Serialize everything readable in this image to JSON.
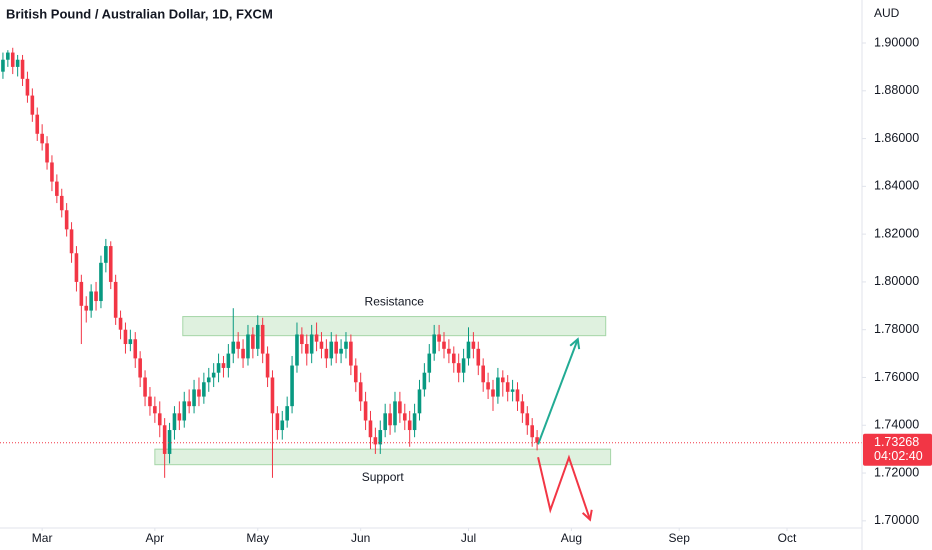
{
  "chart_data": {
    "type": "candlestick",
    "title": "British Pound / Australian Dollar, 1D, FXCM",
    "y_axis_label": "AUD",
    "up_color": "#089981",
    "down_color": "#f23645",
    "grid": false,
    "ylim": [
      1.697,
      1.918
    ],
    "yticks": [
      {
        "value": 1.7,
        "label": "1.70000"
      },
      {
        "value": 1.72,
        "label": "1.72000"
      },
      {
        "value": 1.74,
        "label": "1.74000"
      },
      {
        "value": 1.76,
        "label": "1.76000"
      },
      {
        "value": 1.78,
        "label": "1.78000"
      },
      {
        "value": 1.8,
        "label": "1.80000"
      },
      {
        "value": 1.82,
        "label": "1.82000"
      },
      {
        "value": 1.84,
        "label": "1.84000"
      },
      {
        "value": 1.86,
        "label": "1.86000"
      },
      {
        "value": 1.88,
        "label": "1.88000"
      },
      {
        "value": 1.9,
        "label": "1.90000"
      }
    ],
    "xlim": [
      -0.6,
      175.3
    ],
    "xticks": [
      {
        "value": 8,
        "label": "Mar"
      },
      {
        "value": 31,
        "label": "Apr"
      },
      {
        "value": 52,
        "label": "May"
      },
      {
        "value": 73,
        "label": "Jun"
      },
      {
        "value": 95,
        "label": "Jul"
      },
      {
        "value": 116,
        "label": "Aug"
      },
      {
        "value": 138,
        "label": "Sep"
      },
      {
        "value": 160,
        "label": "Oct"
      }
    ],
    "open": [
      1.888,
      1.893,
      1.896,
      1.89,
      1.893,
      1.885,
      1.878,
      1.87,
      1.862,
      1.858,
      1.85,
      1.842,
      1.836,
      1.83,
      1.822,
      1.812,
      1.8,
      1.79,
      1.788,
      1.796,
      1.792,
      1.808,
      1.815,
      1.8,
      1.785,
      1.78,
      1.774,
      1.776,
      1.768,
      1.76,
      1.752,
      1.748,
      1.745,
      1.74,
      1.728,
      1.738,
      1.745,
      1.742,
      1.75,
      1.748,
      1.755,
      1.752,
      1.758,
      1.76,
      1.762,
      1.766,
      1.764,
      1.77,
      1.775,
      1.772,
      1.768,
      1.778,
      1.772,
      1.782,
      1.77,
      1.76,
      1.745,
      1.738,
      1.742,
      1.748,
      1.765,
      1.778,
      1.774,
      1.77,
      1.778,
      1.775,
      1.772,
      1.768,
      1.775,
      1.77,
      1.772,
      1.775,
      1.765,
      1.758,
      1.75,
      1.742,
      1.735,
      1.732,
      1.738,
      1.745,
      1.74,
      1.75,
      1.745,
      1.742,
      1.738,
      1.745,
      1.755,
      1.762,
      1.77,
      1.778,
      1.775,
      1.772,
      1.77,
      1.766,
      1.762,
      1.768,
      1.775,
      1.772,
      1.765,
      1.758,
      1.755,
      1.752,
      1.76,
      1.758,
      1.754,
      1.755,
      1.75,
      1.745,
      1.74,
      1.735
    ],
    "high": [
      1.896,
      1.897,
      1.898,
      1.895,
      1.895,
      1.888,
      1.881,
      1.873,
      1.866,
      1.861,
      1.853,
      1.845,
      1.839,
      1.833,
      1.825,
      1.815,
      1.803,
      1.794,
      1.799,
      1.8,
      1.811,
      1.818,
      1.817,
      1.803,
      1.788,
      1.783,
      1.78,
      1.779,
      1.771,
      1.763,
      1.756,
      1.752,
      1.75,
      1.743,
      1.741,
      1.748,
      1.75,
      1.754,
      1.755,
      1.759,
      1.76,
      1.762,
      1.764,
      1.766,
      1.77,
      1.769,
      1.774,
      1.789,
      1.779,
      1.776,
      1.782,
      1.781,
      1.786,
      1.785,
      1.773,
      1.763,
      1.748,
      1.746,
      1.752,
      1.769,
      1.783,
      1.781,
      1.778,
      1.782,
      1.783,
      1.779,
      1.776,
      1.779,
      1.778,
      1.776,
      1.779,
      1.778,
      1.768,
      1.762,
      1.754,
      1.746,
      1.739,
      1.742,
      1.749,
      1.749,
      1.754,
      1.754,
      1.749,
      1.746,
      1.749,
      1.759,
      1.766,
      1.774,
      1.782,
      1.782,
      1.779,
      1.776,
      1.773,
      1.77,
      1.772,
      1.781,
      1.779,
      1.775,
      1.768,
      1.762,
      1.759,
      1.764,
      1.763,
      1.761,
      1.759,
      1.758,
      1.753,
      1.748,
      1.743,
      1.738
    ],
    "low": [
      1.885,
      1.89,
      1.887,
      1.886,
      1.882,
      1.875,
      1.867,
      1.859,
      1.855,
      1.847,
      1.838,
      1.833,
      1.827,
      1.819,
      1.808,
      1.796,
      1.774,
      1.783,
      1.785,
      1.788,
      1.789,
      1.804,
      1.797,
      1.782,
      1.776,
      1.77,
      1.771,
      1.764,
      1.756,
      1.748,
      1.744,
      1.741,
      1.735,
      1.718,
      1.724,
      1.734,
      1.738,
      1.739,
      1.745,
      1.745,
      1.748,
      1.749,
      1.754,
      1.756,
      1.758,
      1.76,
      1.76,
      1.766,
      1.768,
      1.764,
      1.765,
      1.768,
      1.769,
      1.766,
      1.756,
      1.718,
      1.734,
      1.734,
      1.739,
      1.745,
      1.762,
      1.77,
      1.765,
      1.766,
      1.771,
      1.768,
      1.764,
      1.765,
      1.766,
      1.766,
      1.768,
      1.761,
      1.754,
      1.746,
      1.738,
      1.73,
      1.728,
      1.728,
      1.735,
      1.736,
      1.737,
      1.741,
      1.738,
      1.731,
      1.735,
      1.742,
      1.752,
      1.758,
      1.767,
      1.771,
      1.768,
      1.766,
      1.762,
      1.758,
      1.758,
      1.765,
      1.768,
      1.761,
      1.754,
      1.751,
      1.746,
      1.749,
      1.752,
      1.75,
      1.75,
      1.746,
      1.741,
      1.736,
      1.731,
      1.7295
    ],
    "close": [
      1.893,
      1.896,
      1.89,
      1.893,
      1.885,
      1.878,
      1.87,
      1.862,
      1.858,
      1.85,
      1.842,
      1.836,
      1.83,
      1.822,
      1.812,
      1.8,
      1.79,
      1.788,
      1.796,
      1.792,
      1.808,
      1.815,
      1.8,
      1.785,
      1.78,
      1.774,
      1.776,
      1.768,
      1.76,
      1.752,
      1.748,
      1.745,
      1.74,
      1.728,
      1.738,
      1.745,
      1.742,
      1.75,
      1.748,
      1.755,
      1.752,
      1.758,
      1.76,
      1.762,
      1.766,
      1.764,
      1.77,
      1.775,
      1.772,
      1.768,
      1.778,
      1.772,
      1.782,
      1.77,
      1.76,
      1.745,
      1.738,
      1.742,
      1.748,
      1.765,
      1.778,
      1.774,
      1.77,
      1.778,
      1.775,
      1.772,
      1.768,
      1.775,
      1.77,
      1.772,
      1.775,
      1.765,
      1.758,
      1.75,
      1.742,
      1.735,
      1.732,
      1.738,
      1.745,
      1.74,
      1.75,
      1.745,
      1.742,
      1.738,
      1.745,
      1.755,
      1.762,
      1.77,
      1.778,
      1.775,
      1.772,
      1.77,
      1.766,
      1.762,
      1.768,
      1.775,
      1.772,
      1.765,
      1.758,
      1.755,
      1.752,
      1.76,
      1.758,
      1.754,
      1.755,
      1.75,
      1.745,
      1.74,
      1.735,
      1.7327
    ],
    "last_price": 1.73268,
    "countdown": "04:02:40",
    "zones": [
      {
        "label": "Resistance",
        "range": [
          1.7775,
          1.7855
        ],
        "x": [
          36.7,
          123
        ]
      },
      {
        "label": "Support",
        "range": [
          1.7235,
          1.73
        ],
        "x": [
          31,
          124
        ]
      }
    ],
    "arrows": [
      {
        "color": "#22ab94",
        "points": [
          [
            109.2,
            1.732
          ],
          [
            117.3,
            1.776
          ]
        ]
      },
      {
        "color": "#f23645",
        "points": [
          [
            109.2,
            1.7266
          ],
          [
            111.7,
            1.7045
          ],
          [
            115.5,
            1.7265
          ],
          [
            119.8,
            1.7005
          ]
        ]
      }
    ]
  }
}
